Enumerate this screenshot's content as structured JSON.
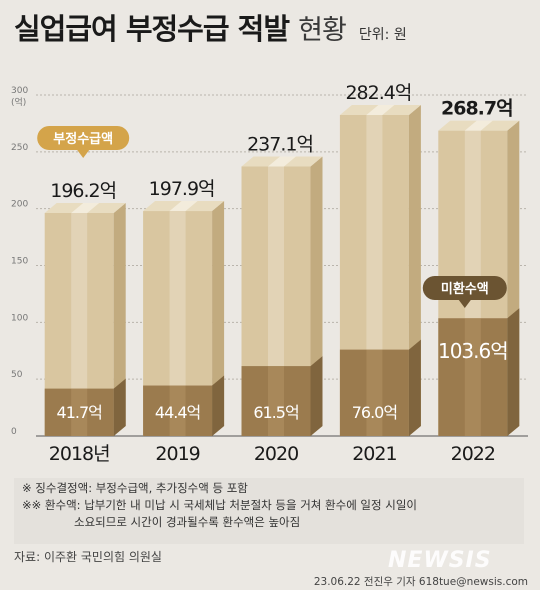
{
  "header": {
    "title": "실업급여 부정수급 적발",
    "subtitle": "현황",
    "unit": "단위: 원"
  },
  "chart_data": {
    "type": "bar",
    "categories": [
      "2018년",
      "2019",
      "2020",
      "2021",
      "2022"
    ],
    "series": [
      {
        "name": "부정수급액",
        "values": [
          196.2,
          197.9,
          237.1,
          282.4,
          268.7
        ],
        "labels": [
          "196.2억",
          "197.9억",
          "237.1억",
          "282.4억",
          "268.7억"
        ]
      },
      {
        "name": "미환수액",
        "values": [
          41.7,
          44.4,
          61.5,
          76.0,
          103.6
        ],
        "labels": [
          "41.7억",
          "44.4억",
          "61.5억",
          "76.0억",
          "103.6억"
        ]
      }
    ],
    "ylabel": "(억)",
    "ylim": [
      0,
      300
    ],
    "yticks": [
      0,
      50,
      100,
      150,
      200,
      250,
      300
    ],
    "grid": true,
    "colors": {
      "total": "#d9c6a0",
      "unrecovered": "#9b7b4e"
    }
  },
  "notes": {
    "line1": "※  징수결정액: 부정수급액, 추가징수액 등 포함",
    "line2": "※※  환수액: 납부기한 내 미납 시 국세체납 처분절차 등을 거쳐 환수에 일정 시일이",
    "line3": "소요되므로 시간이 경과될수록 환수액은 높아짐"
  },
  "source": "자료: 이주환 국민의힘 의원실",
  "watermark": "NEWSIS",
  "credit": "23.06.22 전진우 기자 618tue@newsis.com"
}
